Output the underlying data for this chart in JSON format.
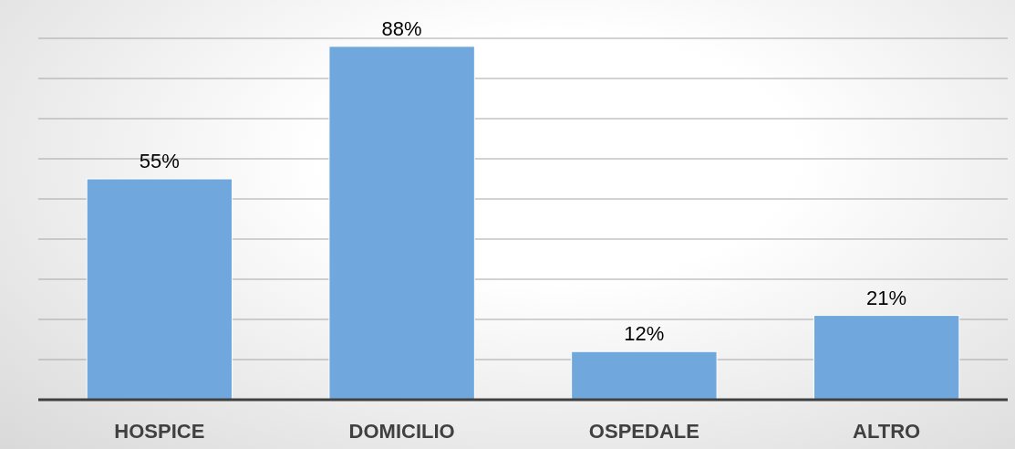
{
  "chart_data": {
    "type": "bar",
    "categories": [
      "HOSPICE",
      "DOMICILIO",
      "OSPEDALE",
      "ALTRO"
    ],
    "values": [
      55,
      88,
      12,
      21
    ],
    "value_labels": [
      "55%",
      "88%",
      "12%",
      "21%"
    ],
    "color": "#70a7dc",
    "ylim": [
      0,
      90
    ],
    "yticks": [
      {
        "value": 0,
        "label": null
      },
      {
        "value": 10,
        "label": null
      },
      {
        "value": 20,
        "label": null
      },
      {
        "value": 30,
        "label": null
      },
      {
        "value": 40,
        "label": null
      },
      {
        "value": 50,
        "label": null
      },
      {
        "value": 60,
        "label": null
      },
      {
        "value": 70,
        "label": null
      },
      {
        "value": 80,
        "label": null
      },
      {
        "value": 90,
        "label": null
      }
    ],
    "grid": "y",
    "tick_labels": "x"
  }
}
